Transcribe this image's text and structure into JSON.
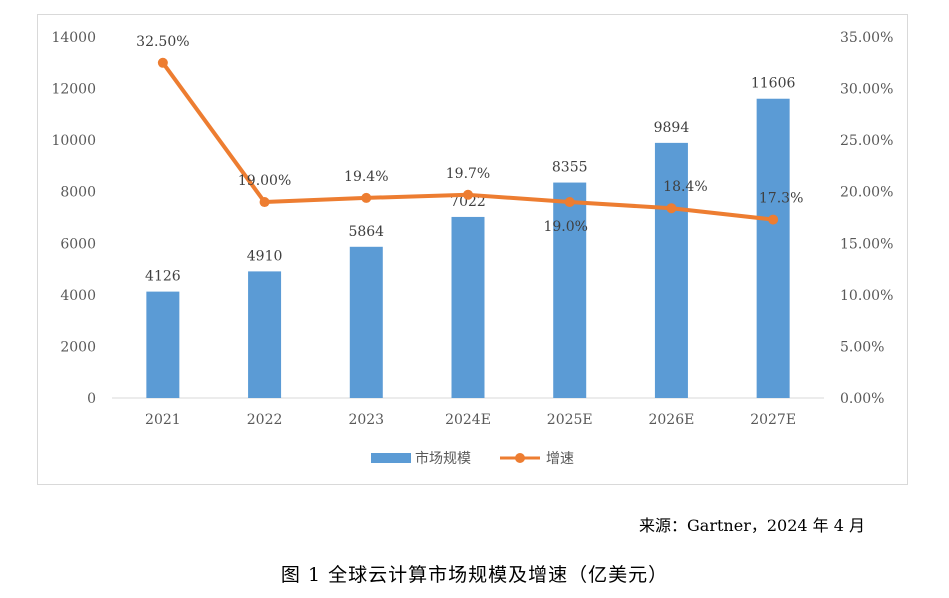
{
  "chart_data": {
    "type": "bar",
    "categories": [
      "2021",
      "2022",
      "2023",
      "2024E",
      "2025E",
      "2026E",
      "2027E"
    ],
    "series": [
      {
        "name": "市场规模",
        "kind": "bar",
        "axis": "left",
        "color": "#5B9BD5",
        "values": [
          4126,
          4910,
          5864,
          7022,
          8355,
          9894,
          11606
        ],
        "labels": [
          "4126",
          "4910",
          "5864",
          "7022",
          "8355",
          "9894",
          "11606"
        ]
      },
      {
        "name": "增速",
        "kind": "line",
        "axis": "right",
        "color": "#ED7D31",
        "values": [
          32.5,
          19.0,
          19.4,
          19.7,
          19.0,
          18.4,
          17.3
        ],
        "labels": [
          "32.50%",
          "19.00%",
          "19.4%",
          "19.7%",
          "19.0%",
          "18.4%",
          "17.3%"
        ]
      }
    ],
    "y_left": {
      "range": [
        0,
        14000
      ],
      "ticks": [
        "0",
        "2000",
        "4000",
        "6000",
        "8000",
        "10000",
        "12000",
        "14000"
      ]
    },
    "y_right": {
      "range": [
        0,
        35
      ],
      "ticks": [
        "0.00%",
        "5.00%",
        "10.00%",
        "15.00%",
        "20.00%",
        "25.00%",
        "30.00%",
        "35.00%"
      ]
    },
    "legend_position": "bottom",
    "gridlines": false
  },
  "source": "来源：Gartner，2024 年 4 月",
  "caption": "图 1  全球云计算市场规模及增速（亿美元）"
}
